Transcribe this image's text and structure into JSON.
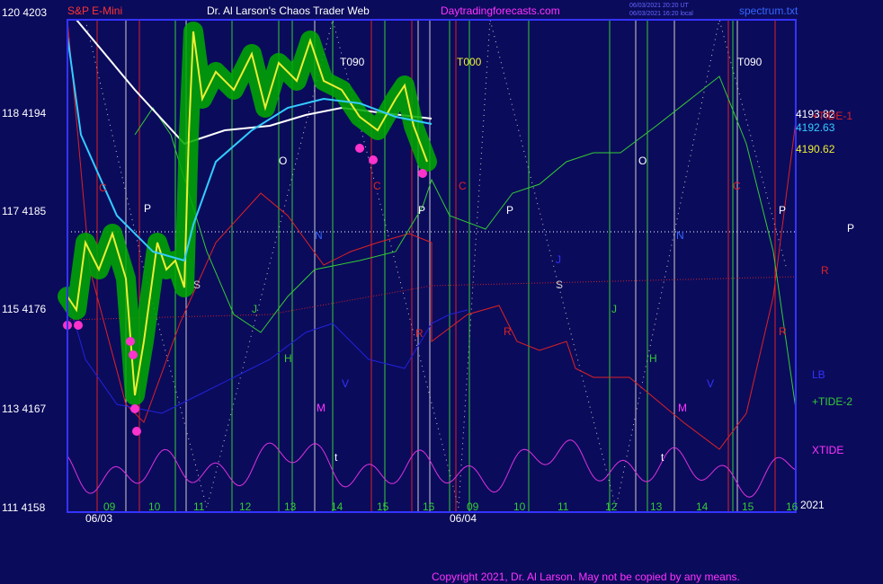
{
  "header": {
    "instrument": "S&P E-Mini",
    "title": "Dr. Al Larson's Chaos Trader Web",
    "site": "Daytradingforecasts.com",
    "stamp1": "06/03/2021 20:20 UT",
    "stamp2": "06/03/2021 16:20 local",
    "file": "spectrum.txt"
  },
  "left_axis": [
    "120 4203",
    "118 4194",
    "117 4185",
    "115 4176",
    "113 4167",
    "111 4158"
  ],
  "right_labels": [
    "4193.82",
    "4192.63",
    "4190.62",
    "+TIDE-1",
    "P",
    "R",
    "LB",
    "+TIDE-2",
    "XTIDE",
    "2021"
  ],
  "hours": [
    "09",
    "10",
    "11",
    "12",
    "13",
    "14",
    "15",
    "16",
    "09",
    "10",
    "11",
    "12",
    "13",
    "14",
    "15",
    "16"
  ],
  "dates": [
    "06/03",
    "06/04"
  ],
  "markers": [
    "T090",
    "T000",
    "T090",
    "C",
    "P",
    "S",
    "J",
    "O",
    "H",
    "N",
    "V",
    "M",
    "t",
    "C",
    "R",
    "P",
    "C",
    "P",
    "J",
    "S",
    "R",
    "J",
    "O",
    "H",
    "N",
    "M",
    "t",
    "V",
    "C",
    "P",
    "R"
  ],
  "footer": "Copyright 2021, Dr. Al Larson. May not be copied by any means."
}
